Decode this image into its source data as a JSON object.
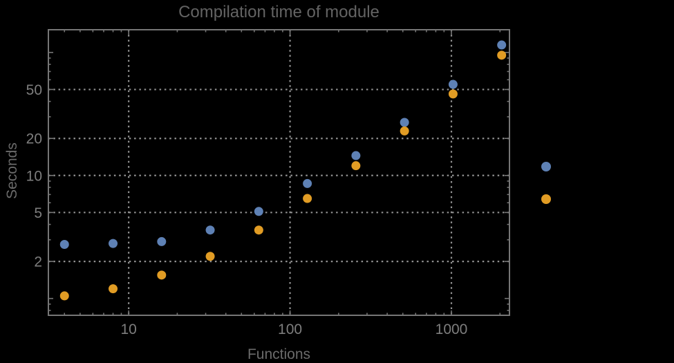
{
  "window": {
    "background": "#000000"
  },
  "chart_data": {
    "type": "scatter",
    "title": "Compilation time of module",
    "xlabel": "Functions",
    "ylabel": "Seconds",
    "xscale": "log",
    "yscale": "log",
    "xlim": [
      3.18,
      2290
    ],
    "ylim": [
      0.73,
      153
    ],
    "grid": "dotted lines at labeled major ticks",
    "x_ticks": [
      {
        "value": 10,
        "label": "10"
      },
      {
        "value": 100,
        "label": "100"
      },
      {
        "value": 1000,
        "label": "1000"
      }
    ],
    "y_ticks": [
      {
        "value": 2,
        "label": "2"
      },
      {
        "value": 5,
        "label": "5"
      },
      {
        "value": 10,
        "label": "10"
      },
      {
        "value": 20,
        "label": "20"
      },
      {
        "value": 50,
        "label": "50"
      }
    ],
    "y_unlabeled_major_ticks": [
      1,
      100
    ],
    "x": [
      4,
      8,
      16,
      32,
      64,
      128,
      256,
      512,
      1024,
      2048
    ],
    "series": [
      {
        "name": "series-blue",
        "color": "#5e81b5",
        "values": [
          2.75,
          2.8,
          2.9,
          3.6,
          5.1,
          8.6,
          14.5,
          27,
          55,
          115
        ]
      },
      {
        "name": "series-orange",
        "color": "#e19c24",
        "values": [
          1.05,
          1.2,
          1.55,
          2.2,
          3.6,
          6.5,
          12,
          23,
          46,
          95
        ]
      }
    ],
    "legend": {
      "position": "right-of-plot-center",
      "labels_visible": false,
      "entries": [
        {
          "marker": "disk",
          "color": "#5e81b5",
          "label": ""
        },
        {
          "marker": "disk",
          "color": "#e19c24",
          "label": ""
        }
      ]
    },
    "marker_diameter_px": 13,
    "colors": {
      "background": "#000000",
      "frame": "#767676",
      "grid": "#929292",
      "tick_label": "#7e7e7e",
      "title": "#636363",
      "axis_label": "#6b6b6b"
    }
  }
}
